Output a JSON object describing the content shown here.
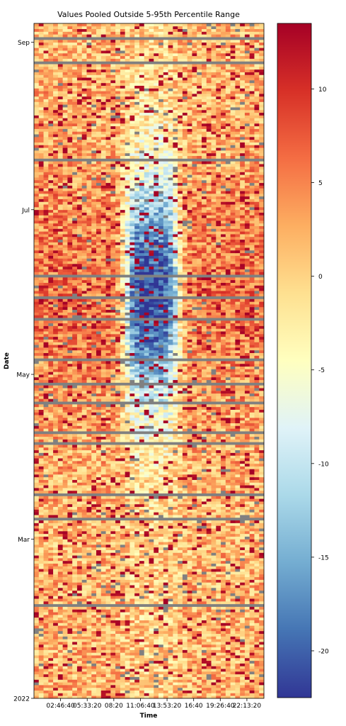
{
  "chart_data": {
    "type": "heatmap",
    "title": "Values Pooled Outside 5-95th Percentile Range",
    "xlabel": "Time",
    "ylabel": "Date",
    "x_tick_labels": [
      "02:46:40",
      "05:33:20",
      "08:20",
      "11:06:40",
      "13:53:20",
      "16:40",
      "19:26:40",
      "22:13:20"
    ],
    "x_range_seconds": [
      0,
      86400
    ],
    "x_tick_values_seconds": [
      10000,
      20000,
      30000,
      40000,
      50000,
      60000,
      70000,
      80000
    ],
    "y_tick_labels": [
      "2022",
      "Mar",
      "May",
      "Jul",
      "Sep"
    ],
    "y_tick_values": [
      "2022-01-01",
      "2022-03-01",
      "2022-05-01",
      "2022-07-01",
      "2022-09-01"
    ],
    "y_range": [
      "2022-01-01",
      "2022-09-08"
    ],
    "colorbar": {
      "min": -22.5,
      "max": 13.5,
      "ticks": [
        10,
        5,
        0,
        -5,
        -10,
        -15,
        -20
      ],
      "tick_labels": [
        "10",
        "5",
        "0",
        "-5",
        "-10",
        "-15",
        "-20"
      ],
      "colormap": "RdYlBu_r",
      "stops": [
        "#313695",
        "#4575b4",
        "#74add1",
        "#abd9e9",
        "#e0f3f8",
        "#ffffbf",
        "#fee090",
        "#fdae61",
        "#f46d43",
        "#d73027",
        "#a50026"
      ]
    },
    "missing_color": "#808080",
    "grid": "off",
    "legend": "none",
    "bins_per_day": 48,
    "notes_on_pattern": {
      "daytime_low_band_hours": [
        8,
        17
      ],
      "summer_months_low_values": [
        "May",
        "Jun",
        "Jul",
        "Aug"
      ],
      "typical_night_values": [
        0,
        13
      ],
      "typical_day_summer_values": [
        -22,
        -10
      ]
    }
  }
}
